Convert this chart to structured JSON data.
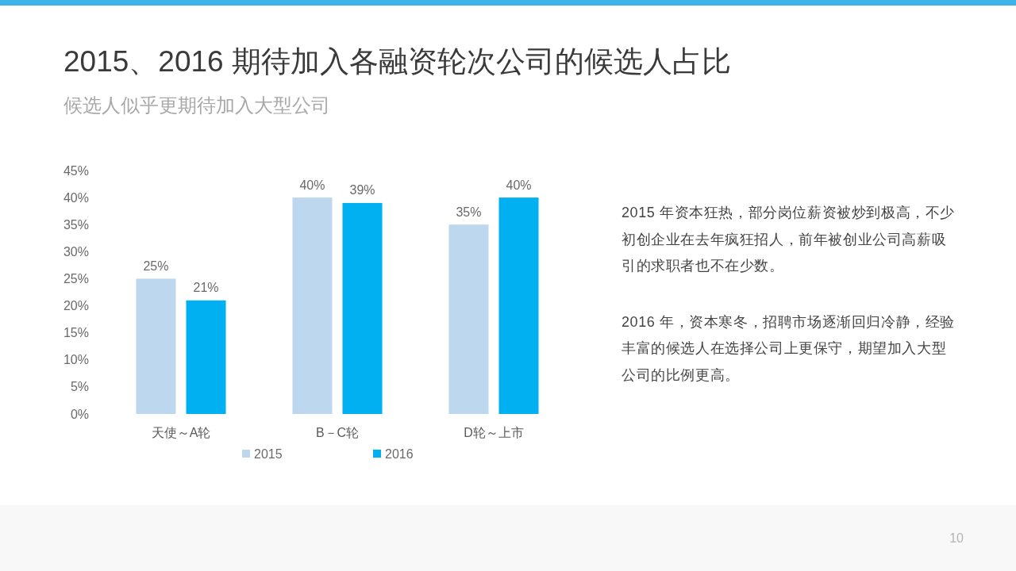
{
  "chart_data": {
    "type": "bar",
    "title": "2015、2016 期待加入各融资轮次公司的候选人占比",
    "subtitle": "候选人似乎更期待加入大型公司",
    "categories": [
      "天使～A轮",
      "B－C轮",
      "D轮～上市"
    ],
    "series": [
      {
        "name": "2015",
        "color": "#bdd7ee",
        "values": [
          25,
          40,
          35
        ],
        "value_labels": [
          "25%",
          "40%",
          "35%"
        ]
      },
      {
        "name": "2016",
        "color": "#00b0f0",
        "values": [
          21,
          39,
          40
        ],
        "value_labels": [
          "21%",
          "39%",
          "40%"
        ]
      }
    ],
    "ylim": [
      0,
      45
    ],
    "yticks": [
      {
        "value": 0,
        "label": "0%"
      },
      {
        "value": 5,
        "label": "5%"
      },
      {
        "value": 10,
        "label": "10%"
      },
      {
        "value": 15,
        "label": "15%"
      },
      {
        "value": 20,
        "label": "20%"
      },
      {
        "value": 25,
        "label": "25%"
      },
      {
        "value": 30,
        "label": "30%"
      },
      {
        "value": 35,
        "label": "35%"
      },
      {
        "value": 40,
        "label": "40%"
      },
      {
        "value": 45,
        "label": "45%"
      }
    ],
    "legend": "bottom",
    "annotations": [
      "2015 年资本狂热，部分岗位薪资被炒到极高，不少初创企业在去年疯狂招人，前年被创业公司高薪吸引的求职者也不在少数。",
      "2016 年，资本寒冬，招聘市场逐渐回归冷静，经验丰富的候选人在选择公司上更保守，期望加入大型公司的比例更高。",
      "10"
    ]
  }
}
